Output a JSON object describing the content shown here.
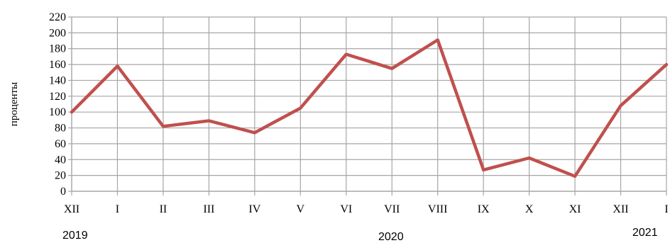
{
  "chart_data": {
    "type": "line",
    "categories": [
      "XII",
      "I",
      "II",
      "III",
      "IV",
      "V",
      "VI",
      "VII",
      "VIII",
      "IX",
      "X",
      "XI",
      "XII",
      "I"
    ],
    "series": [
      {
        "values": [
          100,
          158,
          82,
          89,
          74,
          105,
          173,
          155,
          191,
          27,
          42,
          19,
          108,
          160
        ]
      }
    ],
    "year_labels": [
      "2019",
      "2020",
      "2021"
    ],
    "ylabel": "проценты",
    "yticks": [
      0,
      20,
      40,
      60,
      80,
      100,
      120,
      140,
      160,
      180,
      200,
      220
    ],
    "ylim": [
      0,
      220
    ],
    "grid": true,
    "line_color": "#c0504d",
    "grid_color": "#a6a6a6"
  }
}
